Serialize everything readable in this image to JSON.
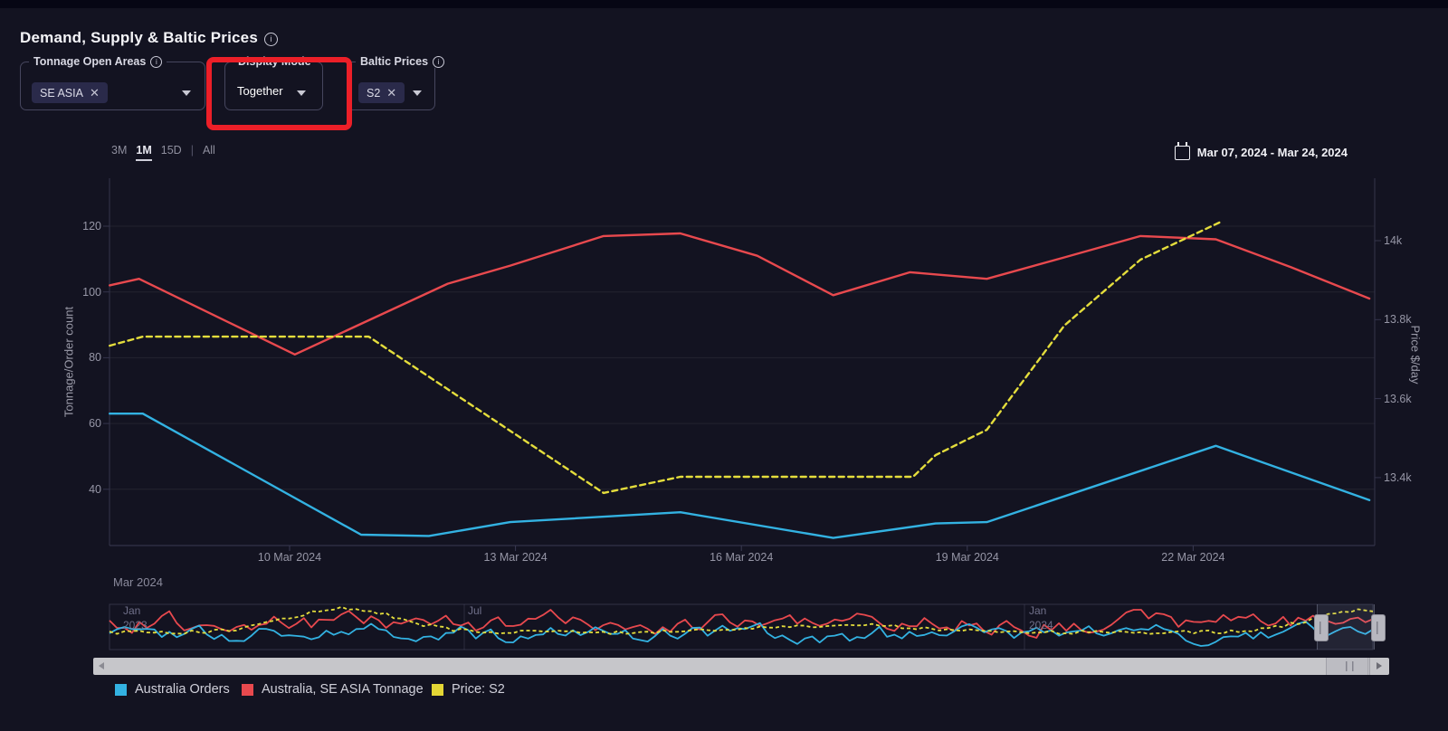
{
  "header": {
    "title": "Demand, Supply & Baltic Prices"
  },
  "controls": {
    "tonnage_open_areas": {
      "label": "Tonnage Open Areas",
      "has_info": true,
      "chips": [
        {
          "text": "SE ASIA"
        }
      ]
    },
    "display_mode": {
      "label": "Display Mode",
      "value": "Together"
    },
    "baltic_prices": {
      "label": "Baltic Prices",
      "has_info": true,
      "chips": [
        {
          "text": "S2"
        }
      ]
    },
    "annotation": {
      "type": "highlight-box",
      "target": "Display Mode control",
      "color": "#ec1f28"
    }
  },
  "toolbar": {
    "ranges": [
      {
        "label": "3M",
        "active": false
      },
      {
        "label": "1M",
        "active": true
      },
      {
        "label": "15D",
        "active": false
      },
      {
        "label": "All",
        "active": false
      }
    ],
    "divider_after": "15D",
    "date_range": "Mar 07, 2024 - Mar 24, 2024"
  },
  "chart_data": {
    "type": "line",
    "title": "Demand, Supply & Baltic Prices",
    "x_axis": {
      "context_label": "Mar 2024",
      "unit": "date",
      "domain_days_march_2024": [
        7.6,
        24.45
      ],
      "ticks": [
        {
          "label": "10 Mar 2024",
          "day": 10
        },
        {
          "label": "13 Mar 2024",
          "day": 13
        },
        {
          "label": "16 Mar 2024",
          "day": 16
        },
        {
          "label": "19 Mar 2024",
          "day": 19
        },
        {
          "label": "22 Mar 2024",
          "day": 22
        }
      ]
    },
    "y_left": {
      "label": "Tonnage/Order count",
      "ticks": [
        "120",
        "100",
        "80",
        "60",
        "40"
      ],
      "tick_values": [
        120,
        100,
        80,
        60,
        40
      ],
      "domain": [
        23,
        134
      ]
    },
    "y_right": {
      "label": "Price $/day",
      "ticks": [
        "14k",
        "13.8k",
        "13.6k",
        "13.4k"
      ],
      "tick_values": [
        14000,
        13800,
        13600,
        13400
      ],
      "domain": [
        13230,
        14160
      ]
    },
    "grid": true,
    "legend_position": "bottom",
    "series": [
      {
        "name": "Australia Orders",
        "axis": "left",
        "color": "#33b2e2",
        "style": "solid",
        "points": [
          [
            7.61,
            63
          ],
          [
            8.05,
            63
          ],
          [
            10.95,
            26.2
          ],
          [
            11.85,
            25.8
          ],
          [
            12.93,
            30
          ],
          [
            15.19,
            33
          ],
          [
            17.22,
            25.2
          ],
          [
            18.58,
            29.6
          ],
          [
            19.26,
            30
          ],
          [
            22.3,
            53.2
          ],
          [
            24.34,
            36.7
          ]
        ]
      },
      {
        "name": "Australia, SE ASIA Tonnage",
        "axis": "left",
        "color": "#e8494e",
        "style": "solid",
        "points": [
          [
            7.61,
            102
          ],
          [
            8.0,
            104
          ],
          [
            10.07,
            81
          ],
          [
            12.1,
            102.5
          ],
          [
            12.93,
            108
          ],
          [
            14.17,
            117
          ],
          [
            15.19,
            117.8
          ],
          [
            16.21,
            111
          ],
          [
            17.22,
            99
          ],
          [
            18.24,
            106
          ],
          [
            19.26,
            104
          ],
          [
            20.29,
            110.5
          ],
          [
            21.3,
            117
          ],
          [
            22.3,
            116
          ],
          [
            23.3,
            107.5
          ],
          [
            24.34,
            98
          ]
        ]
      },
      {
        "name": "Price: S2",
        "axis": "right",
        "color": "#e4dd3c",
        "style": "dashed",
        "points": [
          [
            7.61,
            13734
          ],
          [
            8.05,
            13757
          ],
          [
            11.05,
            13757
          ],
          [
            14.17,
            13361
          ],
          [
            15.19,
            13402
          ],
          [
            18.28,
            13402
          ],
          [
            18.58,
            13457
          ],
          [
            19.26,
            13521
          ],
          [
            20.29,
            13785
          ],
          [
            21.3,
            13952
          ],
          [
            22.35,
            14046
          ]
        ]
      }
    ],
    "navigator": {
      "description": "overview strip Jan 2023 - Mar 2024 with selection window at far right",
      "labels": [
        {
          "l1": "Jan",
          "l2": "2023"
        },
        {
          "l1": "Jul",
          "l2": ""
        },
        {
          "l1": "Jan",
          "l2": "2024"
        }
      ],
      "points": 170,
      "series": [
        {
          "name": "Australia, SE ASIA Tonnage",
          "color": "#e8494e",
          "style": "solid",
          "gen": "walk",
          "seed": 7,
          "base": 688,
          "amp": 9,
          "min": 674,
          "max": 705,
          "start": 692
        },
        {
          "name": "Australia Orders",
          "color": "#33b2e2",
          "style": "solid",
          "gen": "walk",
          "seed": 21,
          "base": 702,
          "amp": 8,
          "min": 687,
          "max": 714,
          "start": 705
        },
        {
          "name": "Price: S2",
          "color": "#e4dd3c",
          "style": "dashed",
          "gen": "bumps",
          "seed": 40,
          "base": 699,
          "noise": 4,
          "min": 668,
          "max": 710,
          "bumps": [
            {
              "c": 0.185,
              "w": 0.06,
              "h": 27
            },
            {
              "c": 0.58,
              "w": 0.09,
              "h": 8
            },
            {
              "c": 0.995,
              "w": 0.06,
              "h": 25
            }
          ]
        }
      ]
    }
  },
  "legend": {
    "items": [
      {
        "label": "Australia Orders",
        "color": "#33b2e2"
      },
      {
        "label": "Australia, SE ASIA Tonnage",
        "color": "#e8494e"
      },
      {
        "label": "Price: S2",
        "color": "#e3d635"
      }
    ]
  },
  "colors": {
    "background": "#131321",
    "accent_annotation": "#ec1f28",
    "gridline": "rgba(255,255,255,0.07)",
    "axis_text": "#9696a6"
  }
}
